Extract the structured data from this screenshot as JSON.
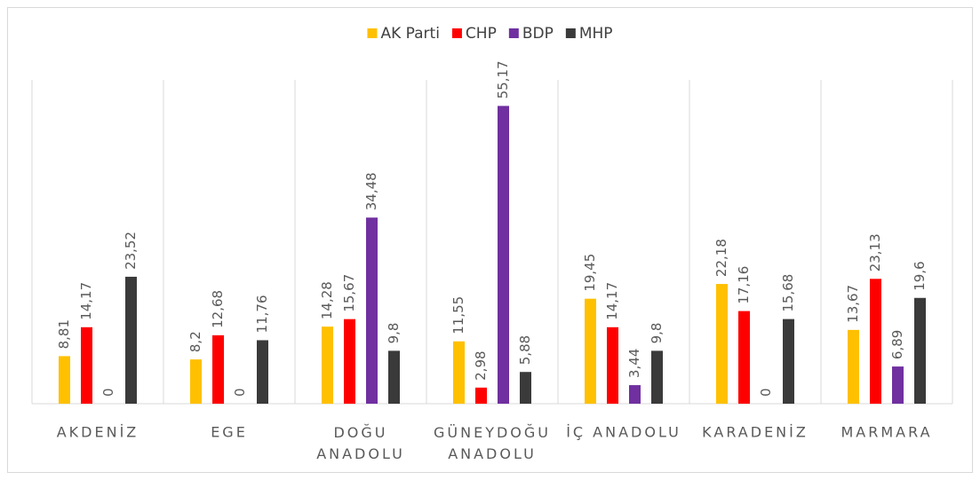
{
  "chart_data": {
    "type": "bar",
    "categories": [
      "AKDENİZ",
      "EGE",
      "DOĞU ANADOLU",
      "GÜNEYDOĞU ANADOLU",
      "İÇ ANADOLU",
      "KARADENİZ",
      "MARMARA"
    ],
    "series": [
      {
        "name": "AK Parti",
        "color": "#FFC000",
        "values": [
          8.81,
          8.2,
          14.28,
          11.55,
          19.45,
          22.18,
          13.67
        ],
        "value_labels": [
          "8,81",
          "8,2",
          "14,28",
          "11,55",
          "19,45",
          "22,18",
          "13,67"
        ]
      },
      {
        "name": "CHP",
        "color": "#FF0000",
        "values": [
          14.17,
          12.68,
          15.67,
          2.98,
          14.17,
          17.16,
          23.13
        ],
        "value_labels": [
          "14,17",
          "12,68",
          "15,67",
          "2,98",
          "14,17",
          "17,16",
          "23,13"
        ]
      },
      {
        "name": "BDP",
        "color": "#7030A0",
        "values": [
          0,
          0,
          34.48,
          55.17,
          3.44,
          0,
          6.89
        ],
        "value_labels": [
          "0",
          "0",
          "34,48",
          "55,17",
          "3,44",
          "0",
          "6,89"
        ]
      },
      {
        "name": "MHP",
        "color": "#3A3A3A",
        "values": [
          23.52,
          11.76,
          9.8,
          5.88,
          9.8,
          15.68,
          19.6
        ],
        "value_labels": [
          "23,52",
          "11,76",
          "9,8",
          "5,88",
          "9,8",
          "15,68",
          "19,6"
        ]
      }
    ],
    "ylim": [
      0,
      60
    ],
    "legend": "top"
  }
}
